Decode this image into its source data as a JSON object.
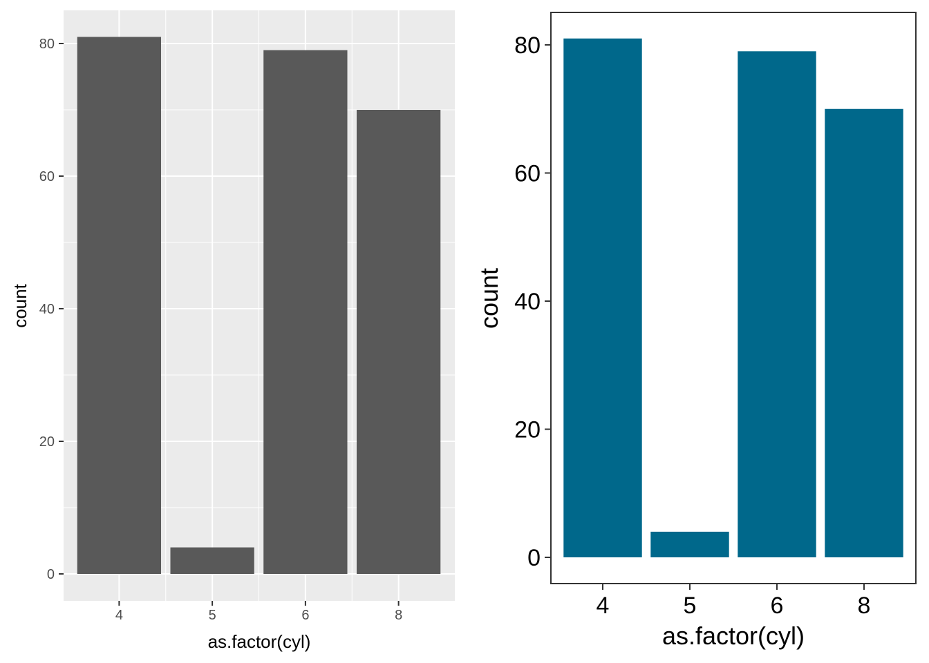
{
  "chart_data": [
    {
      "type": "bar",
      "theme": "ggplot grey",
      "categories": [
        "4",
        "5",
        "6",
        "8"
      ],
      "values": [
        81,
        4,
        79,
        70
      ],
      "xlabel": "as.factor(cyl)",
      "ylabel": "count",
      "ylim": [
        0,
        85
      ],
      "yticks": [
        "0",
        "20",
        "40",
        "60",
        "80"
      ],
      "grid": true,
      "bar_color": "#595959",
      "panel_color": "#ebebeb"
    },
    {
      "type": "bar",
      "theme": "bordered white",
      "categories": [
        "4",
        "5",
        "6",
        "8"
      ],
      "values": [
        81,
        4,
        79,
        70
      ],
      "xlabel": "as.factor(cyl)",
      "ylabel": "count",
      "ylim": [
        0,
        85
      ],
      "yticks": [
        "0",
        "20",
        "40",
        "60",
        "80"
      ],
      "grid": false,
      "bar_color": "#00688b",
      "panel_color": "#ffffff"
    }
  ]
}
